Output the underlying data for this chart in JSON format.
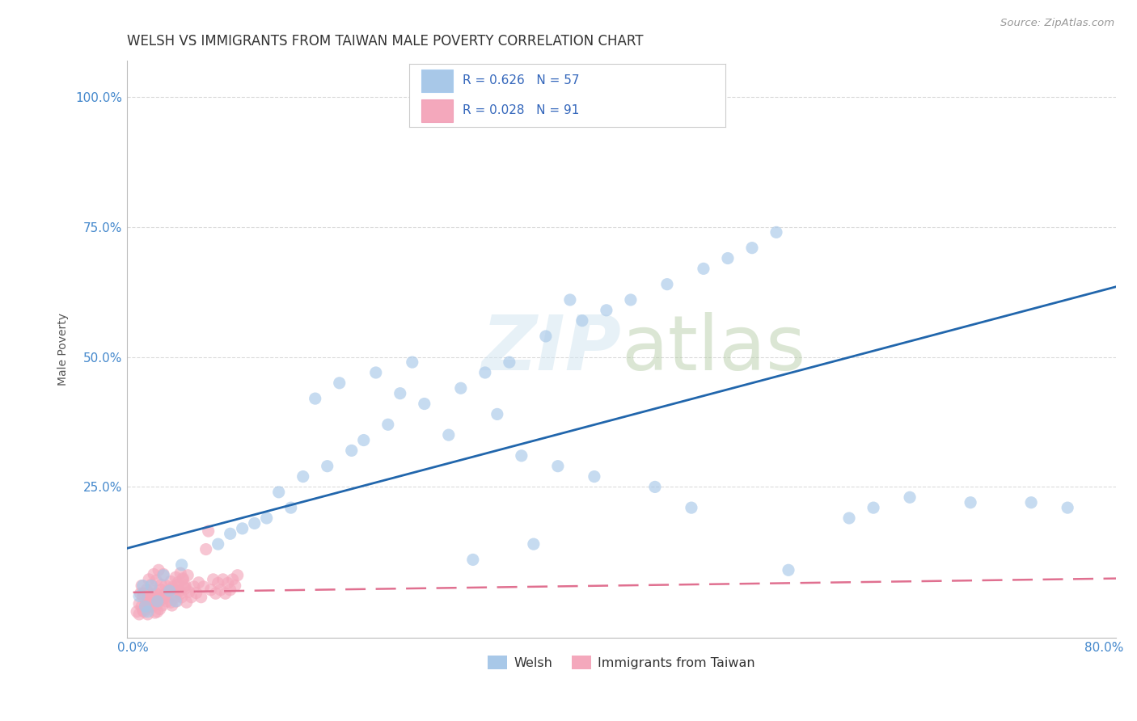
{
  "title": "WELSH VS IMMIGRANTS FROM TAIWAN MALE POVERTY CORRELATION CHART",
  "source": "Source: ZipAtlas.com",
  "ylabel_label": "Male Poverty",
  "welsh_R": 0.626,
  "welsh_N": 57,
  "taiwan_R": 0.028,
  "taiwan_N": 91,
  "welsh_color": "#a8c8e8",
  "taiwan_color": "#f4a8bc",
  "welsh_line_color": "#2166ac",
  "taiwan_line_color": "#e07090",
  "background_color": "#ffffff",
  "grid_color": "#cccccc",
  "title_fontsize": 12,
  "axis_label_fontsize": 10,
  "tick_fontsize": 11,
  "welsh_scatter_x": [
    0.005,
    0.01,
    0.015,
    0.02,
    0.025,
    0.03,
    0.035,
    0.04,
    0.008,
    0.012,
    0.07,
    0.09,
    0.11,
    0.13,
    0.08,
    0.1,
    0.12,
    0.14,
    0.16,
    0.18,
    0.19,
    0.21,
    0.24,
    0.27,
    0.29,
    0.31,
    0.34,
    0.37,
    0.39,
    0.41,
    0.44,
    0.47,
    0.49,
    0.51,
    0.53,
    0.22,
    0.26,
    0.3,
    0.32,
    0.35,
    0.38,
    0.43,
    0.46,
    0.54,
    0.59,
    0.61,
    0.64,
    0.69,
    0.74,
    0.77,
    0.15,
    0.17,
    0.2,
    0.23,
    0.28,
    0.33,
    0.36
  ],
  "welsh_scatter_y": [
    0.04,
    0.02,
    0.06,
    0.03,
    0.08,
    0.05,
    0.03,
    0.1,
    0.06,
    0.01,
    0.14,
    0.17,
    0.19,
    0.21,
    0.16,
    0.18,
    0.24,
    0.27,
    0.29,
    0.32,
    0.34,
    0.37,
    0.41,
    0.44,
    0.47,
    0.49,
    0.54,
    0.57,
    0.59,
    0.61,
    0.64,
    0.67,
    0.69,
    0.71,
    0.74,
    0.43,
    0.35,
    0.39,
    0.31,
    0.29,
    0.27,
    0.25,
    0.21,
    0.09,
    0.19,
    0.21,
    0.23,
    0.22,
    0.22,
    0.21,
    0.42,
    0.45,
    0.47,
    0.49,
    0.11,
    0.14,
    0.61
  ],
  "taiwan_scatter_x": [
    0.005,
    0.008,
    0.01,
    0.012,
    0.015,
    0.018,
    0.02,
    0.022,
    0.025,
    0.006,
    0.008,
    0.01,
    0.012,
    0.014,
    0.016,
    0.018,
    0.02,
    0.022,
    0.024,
    0.026,
    0.028,
    0.03,
    0.032,
    0.034,
    0.036,
    0.038,
    0.04,
    0.042,
    0.044,
    0.046,
    0.048,
    0.05,
    0.052,
    0.054,
    0.056,
    0.058,
    0.06,
    0.062,
    0.064,
    0.066,
    0.068,
    0.07,
    0.072,
    0.074,
    0.076,
    0.078,
    0.08,
    0.082,
    0.084,
    0.086,
    0.007,
    0.009,
    0.011,
    0.013,
    0.015,
    0.017,
    0.019,
    0.021,
    0.023,
    0.025,
    0.027,
    0.029,
    0.031,
    0.033,
    0.035,
    0.037,
    0.039,
    0.041,
    0.043,
    0.045,
    0.003,
    0.005,
    0.007,
    0.009,
    0.011,
    0.013,
    0.015,
    0.017,
    0.019,
    0.021,
    0.023,
    0.025,
    0.027,
    0.029,
    0.031,
    0.033,
    0.035,
    0.037,
    0.039,
    0.041,
    0.043
  ],
  "taiwan_scatter_y": [
    0.025,
    0.04,
    0.015,
    0.035,
    0.05,
    0.008,
    0.025,
    0.015,
    0.035,
    0.045,
    0.012,
    0.022,
    0.005,
    0.03,
    0.02,
    0.042,
    0.01,
    0.032,
    0.022,
    0.042,
    0.03,
    0.05,
    0.022,
    0.042,
    0.03,
    0.05,
    0.038,
    0.058,
    0.028,
    0.048,
    0.038,
    0.058,
    0.046,
    0.066,
    0.038,
    0.058,
    0.13,
    0.165,
    0.052,
    0.072,
    0.045,
    0.065,
    0.052,
    0.072,
    0.045,
    0.065,
    0.052,
    0.072,
    0.06,
    0.08,
    0.06,
    0.045,
    0.052,
    0.072,
    0.062,
    0.082,
    0.07,
    0.09,
    0.062,
    0.082,
    0.038,
    0.048,
    0.028,
    0.055,
    0.038,
    0.062,
    0.045,
    0.072,
    0.055,
    0.08,
    0.01,
    0.005,
    0.02,
    0.01,
    0.03,
    0.02,
    0.038,
    0.028,
    0.045,
    0.035,
    0.052,
    0.042,
    0.06,
    0.05,
    0.068,
    0.058,
    0.076,
    0.066,
    0.084,
    0.074,
    0.06
  ]
}
